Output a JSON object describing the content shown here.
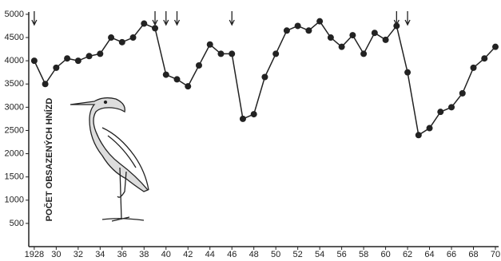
{
  "chart_data": {
    "type": "line",
    "y_label": "POČET OBSAZENÝCH HNÍZD",
    "x": [
      1928,
      1929,
      1930,
      1931,
      1932,
      1933,
      1934,
      1935,
      1936,
      1937,
      1938,
      1939,
      1940,
      1941,
      1942,
      1943,
      1944,
      1945,
      1946,
      1947,
      1948,
      1949,
      1950,
      1951,
      1952,
      1953,
      1954,
      1955,
      1956,
      1957,
      1958,
      1959,
      1960,
      1961,
      1962,
      1963,
      1964,
      1965,
      1966,
      1967,
      1968,
      1969,
      1970
    ],
    "series": [
      {
        "color": "#222222",
        "values": [
          4000,
          3500,
          3850,
          4050,
          4000,
          4100,
          4150,
          4500,
          4400,
          4500,
          4800,
          4700,
          3700,
          3600,
          3450,
          3900,
          4350,
          4150,
          4150,
          2750,
          2850,
          3650,
          4150,
          4650,
          4750,
          4650,
          4850,
          4500,
          4300,
          4550,
          4150,
          4600,
          4450,
          4750,
          3750,
          2400,
          2550,
          2900,
          3000,
          3300,
          3850,
          4050,
          4300
        ]
      }
    ],
    "arrow_years": [
      1928,
      1939,
      1940,
      1941,
      1946,
      1961,
      1962
    ],
    "xlim": [
      1927.5,
      1970
    ],
    "ylim": [
      0,
      5050
    ],
    "xticks": [
      1928,
      {
        "value": 1930,
        "label": "30"
      },
      {
        "value": 1932,
        "label": "32"
      },
      {
        "value": 1934,
        "label": "34"
      },
      {
        "value": 1936,
        "label": "36"
      },
      {
        "value": 1938,
        "label": "38"
      },
      {
        "value": 1940,
        "label": "40"
      },
      {
        "value": 1942,
        "label": "42"
      },
      {
        "value": 1944,
        "label": "44"
      },
      {
        "value": 1946,
        "label": "46"
      },
      {
        "value": 1948,
        "label": "48"
      },
      {
        "value": 1950,
        "label": "50"
      },
      {
        "value": 1952,
        "label": "52"
      },
      {
        "value": 1954,
        "label": "54"
      },
      {
        "value": 1956,
        "label": "56"
      },
      {
        "value": 1958,
        "label": "58"
      },
      {
        "value": 1960,
        "label": "60"
      },
      {
        "value": 1962,
        "label": "62"
      },
      {
        "value": 1964,
        "label": "64"
      },
      {
        "value": 1966,
        "label": "66"
      },
      {
        "value": 1968,
        "label": "68"
      },
      {
        "value": 1970,
        "label": "70"
      }
    ],
    "yticks": [
      500,
      1000,
      1500,
      2000,
      2500,
      3000,
      3500,
      4000,
      4500,
      5000
    ]
  }
}
